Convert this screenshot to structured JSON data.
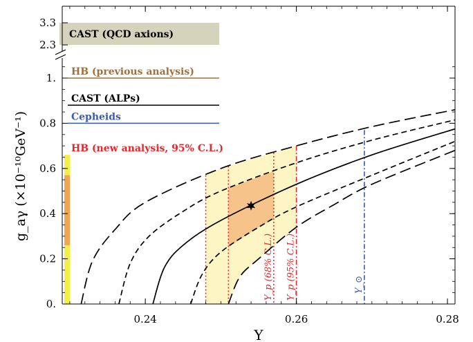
{
  "chart_data": {
    "type": "line",
    "xlabel": "Y",
    "ylabel": "g_aγ (×10⁻¹⁰GeV⁻¹)",
    "xlim": [
      0.229,
      0.281
    ],
    "ylim": [
      0,
      1.14
    ],
    "x_ticks": [
      "0.24",
      "0.26",
      "0.28"
    ],
    "x_tick_values": [
      0.24,
      0.26,
      0.28
    ],
    "y_ticks": [
      "0.",
      "0.2",
      "0.4",
      "0.6",
      "0.8",
      "1."
    ],
    "y_tick_values": [
      0,
      0.2,
      0.4,
      0.6,
      0.8,
      1.0
    ],
    "broken_axis_ticks": [
      "2.3",
      "3.3"
    ],
    "curves": [
      {
        "style": "solid",
        "x0": 0.241,
        "x": [
          0.241,
          0.2425,
          0.245,
          0.25,
          0.26,
          0.27,
          0.281
        ],
        "y": [
          0.0,
          0.16,
          0.26,
          0.37,
          0.53,
          0.66,
          0.775
        ]
      },
      {
        "style": "short-dash",
        "x0": 0.2365,
        "x": [
          0.2365,
          0.238,
          0.2405,
          0.245,
          0.25,
          0.26,
          0.27,
          0.281
        ],
        "y": [
          0.0,
          0.18,
          0.3,
          0.41,
          0.5,
          0.625,
          0.725,
          0.815
        ]
      },
      {
        "style": "short-dash",
        "x0": 0.246,
        "x": [
          0.246,
          0.2475,
          0.25,
          0.255,
          0.26,
          0.27,
          0.281
        ],
        "y": [
          0.0,
          0.13,
          0.23,
          0.34,
          0.43,
          0.57,
          0.72
        ]
      },
      {
        "style": "long-dash",
        "x0": 0.2315,
        "x": [
          0.2315,
          0.233,
          0.236,
          0.24,
          0.25,
          0.26,
          0.27,
          0.281
        ],
        "y": [
          0.0,
          0.19,
          0.33,
          0.45,
          0.6,
          0.7,
          0.785,
          0.86
        ]
      },
      {
        "style": "long-dash",
        "x0": 0.251,
        "x": [
          0.251,
          0.2525,
          0.255,
          0.26,
          0.265,
          0.27,
          0.281
        ],
        "y": [
          0.0,
          0.12,
          0.2,
          0.34,
          0.44,
          0.53,
          0.68
        ]
      }
    ],
    "regions": [
      {
        "name": "Y_p (95% C.L.)",
        "fill": "#fdf6c4",
        "x_range": [
          0.248,
          0.26
        ]
      },
      {
        "name": "Y_p (68% C.L.)",
        "fill": "#f6c48a",
        "x_range": [
          0.251,
          0.257
        ]
      }
    ],
    "best_fit_point": {
      "x": 0.254,
      "y": 0.435
    },
    "vertical_lines": [
      {
        "x": 0.248,
        "style": "dotted",
        "color": "#e8262b"
      },
      {
        "x": 0.251,
        "style": "dotted",
        "color": "#e8262b"
      },
      {
        "x": 0.257,
        "style": "dotted",
        "color": "#e8262b",
        "label": "Y_p (68% C.L.)"
      },
      {
        "x": 0.26,
        "style": "dash-dot",
        "color": "#e8262b",
        "label": "Y_p (95% C.L.)"
      },
      {
        "x": 0.269,
        "style": "dash-dot",
        "color": "#3b5ab0",
        "label": "Y_⊙"
      }
    ],
    "horizontal_bounds": [
      {
        "label": "HB (previous analysis)",
        "y": 1.0,
        "color": "#a0703c"
      },
      {
        "label": "CAST (ALPs)",
        "y": 0.88,
        "color": "#000000"
      },
      {
        "label": "Cepheids",
        "y": 0.8,
        "color": "#3b5ab0"
      },
      {
        "label": "HB (new analysis, 95% C.L.)",
        "y": 0.66,
        "color": "#e8262b"
      }
    ],
    "cast_qcd": {
      "label": "CAST (QCD axions)",
      "y_range": [
        2.3,
        3.3
      ],
      "color": "#d6d3bd"
    },
    "hb_new_bar": {
      "y95": [
        0,
        0.66
      ],
      "y68": [
        0.26,
        0.57
      ],
      "color95": "#f4ef45",
      "color68": "#f0a54e"
    }
  }
}
